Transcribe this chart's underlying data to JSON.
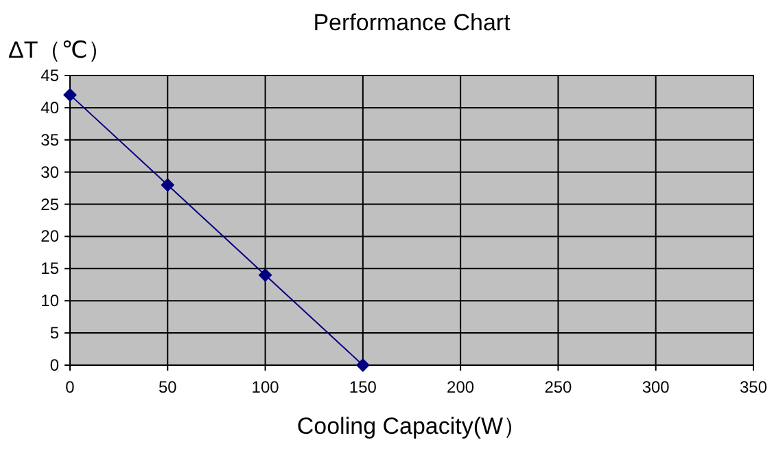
{
  "chart_data": {
    "type": "line",
    "title": "Performance Chart",
    "xlabel": "Cooling Capacity(W）",
    "ylabel": "ΔT（℃）",
    "x": [
      0,
      50,
      100,
      150
    ],
    "series": [
      {
        "color": "#000080",
        "values": [
          42,
          28,
          14,
          0
        ]
      }
    ],
    "xlim": [
      0,
      350
    ],
    "xticks": [
      0,
      50,
      100,
      150,
      200,
      250,
      300,
      350
    ],
    "ylim": [
      0,
      45
    ],
    "yticks": [
      0,
      5,
      10,
      15,
      20,
      25,
      30,
      35,
      40,
      45
    ],
    "grid": true,
    "marker": "diamond",
    "line_style": "solid"
  }
}
